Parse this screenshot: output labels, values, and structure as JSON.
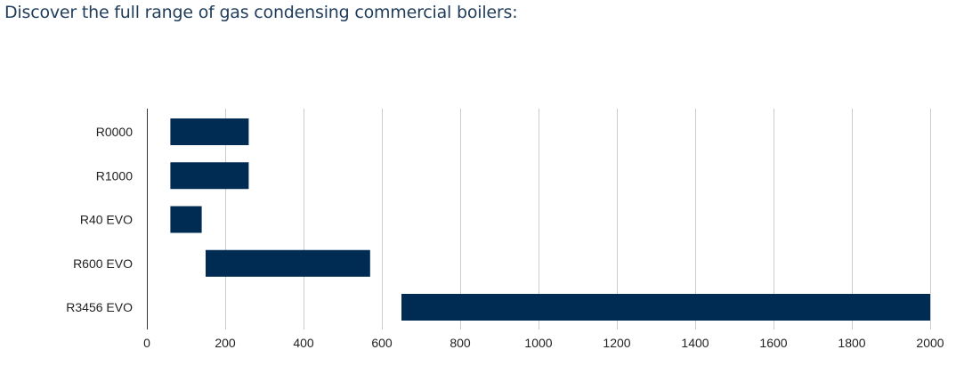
{
  "heading": "Discover the full range of gas condensing commercial boilers:",
  "chart_data": {
    "type": "bar",
    "orientation": "horizontal",
    "style": "floating-range",
    "categories": [
      "R0000",
      "R1000",
      "R40 EVO",
      "R600 EVO",
      "R3456 EVO"
    ],
    "ranges": [
      [
        60,
        260
      ],
      [
        60,
        260
      ],
      [
        60,
        140
      ],
      [
        150,
        570
      ],
      [
        650,
        2000
      ]
    ],
    "xlim": [
      0,
      2000
    ],
    "xticks": [
      0,
      200,
      400,
      600,
      800,
      1000,
      1200,
      1400,
      1600,
      1800,
      2000
    ],
    "grid": "vertical",
    "bar_color": "#002c54",
    "grid_color": "#cccccc",
    "title": "",
    "xlabel": "",
    "ylabel": ""
  }
}
